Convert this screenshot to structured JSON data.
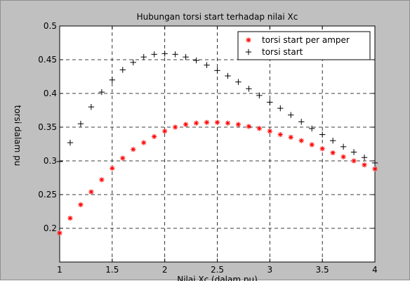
{
  "chart_data": {
    "type": "scatter",
    "title": "Hubungan torsi start terhadap nilai Xc",
    "xlabel": "Nilai Xc (dalam pu)",
    "ylabel": "torsi dalam pu",
    "xlim": [
      1,
      4
    ],
    "ylim": [
      0.15,
      0.5
    ],
    "xticks": [
      1,
      1.5,
      2,
      2.5,
      3,
      3.5,
      4
    ],
    "xtick_labels": [
      "1",
      "1.5",
      "2",
      "2.5",
      "3",
      "3.5",
      "4"
    ],
    "yticks": [
      0.2,
      0.25,
      0.3,
      0.35,
      0.4,
      0.45,
      0.5
    ],
    "ytick_labels": [
      "0.2",
      "0.25",
      "0.3",
      "0.35",
      "0.4",
      "0.45",
      "0.5"
    ],
    "grid": true,
    "grid_style": "dashed",
    "legend_position": "top-right",
    "x": [
      1.0,
      1.1,
      1.2,
      1.3,
      1.4,
      1.5,
      1.6,
      1.7,
      1.8,
      1.9,
      2.0,
      2.1,
      2.2,
      2.3,
      2.4,
      2.5,
      2.6,
      2.7,
      2.8,
      2.9,
      3.0,
      3.1,
      3.2,
      3.3,
      3.4,
      3.5,
      3.6,
      3.7,
      3.8,
      3.9,
      4.0
    ],
    "series": [
      {
        "name": "torsi start per amper",
        "marker": "asterisk",
        "color": "#ff0000",
        "values": [
          0.193,
          0.215,
          0.235,
          0.254,
          0.272,
          0.289,
          0.304,
          0.317,
          0.327,
          0.336,
          0.344,
          0.35,
          0.354,
          0.356,
          0.357,
          0.357,
          0.356,
          0.354,
          0.351,
          0.348,
          0.344,
          0.339,
          0.335,
          0.33,
          0.324,
          0.318,
          0.312,
          0.306,
          0.3,
          0.294,
          0.288
        ]
      },
      {
        "name": "torsi start",
        "marker": "plus",
        "color": "#000000",
        "values": [
          0.299,
          0.327,
          0.355,
          0.38,
          0.402,
          0.42,
          0.435,
          0.446,
          0.454,
          0.458,
          0.459,
          0.458,
          0.454,
          0.449,
          0.442,
          0.434,
          0.426,
          0.417,
          0.407,
          0.397,
          0.387,
          0.378,
          0.368,
          0.358,
          0.348,
          0.339,
          0.33,
          0.321,
          0.313,
          0.305,
          0.297
        ]
      }
    ]
  }
}
